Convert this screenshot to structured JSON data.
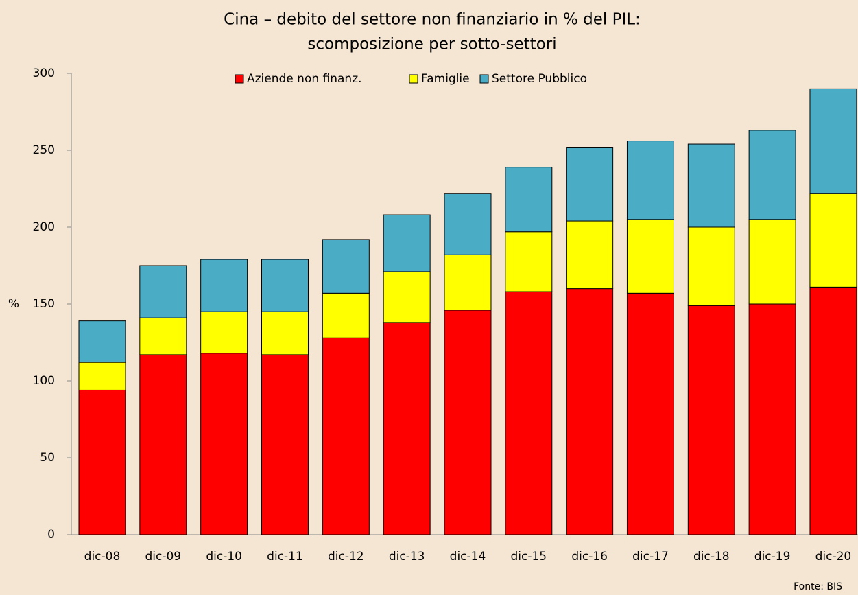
{
  "chart_data": {
    "type": "stacked_bar",
    "title": "Cina – debito del settore non finanziario in % del PIL:",
    "subtitle": "scomposizione per sotto-settori",
    "y_label": "%",
    "source": "Fonte: BIS",
    "categories": [
      "dic-08",
      "dic-09",
      "dic-10",
      "dic-11",
      "dic-12",
      "dic-13",
      "dic-14",
      "dic-15",
      "dic-16",
      "dic-17",
      "dic-18",
      "dic-19",
      "dic-20"
    ],
    "series": [
      {
        "name": "Aziende non finanz.",
        "color": "#ff0000",
        "values": [
          94,
          117,
          118,
          117,
          128,
          138,
          146,
          158,
          160,
          157,
          149,
          150,
          161
        ]
      },
      {
        "name": "Famiglie",
        "color": "#ffff00",
        "values": [
          18,
          24,
          27,
          28,
          29,
          33,
          36,
          39,
          44,
          48,
          51,
          55,
          61
        ]
      },
      {
        "name": "Settore Pubblico",
        "color": "#4bacc6",
        "values": [
          27,
          34,
          34,
          34,
          35,
          37,
          40,
          42,
          48,
          51,
          54,
          58,
          68
        ]
      }
    ],
    "ylim": [
      0,
      300
    ],
    "yticks": [
      0,
      50,
      100,
      150,
      200,
      250,
      300
    ],
    "grid": false,
    "legend": "top"
  }
}
